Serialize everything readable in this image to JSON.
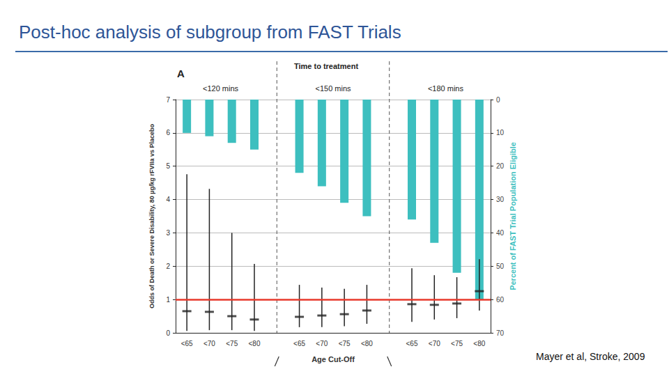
{
  "chart_data": {
    "type": "bar",
    "title": "Post-hoc analysis of subgroup from FAST Trials",
    "panel_label": "A",
    "group_title": "Time to treatment",
    "group_labels": [
      "<120 mins",
      "<150 mins",
      "<180 mins"
    ],
    "x_label": "Age Cut-Off",
    "y_label": "Odds of Death or Severe Disability, 80 µg/kg rFVIIa vs Placebo",
    "y2_label": "Percent of FAST Trial Population Eligible",
    "source": "Mayer et al, Stroke, 2009",
    "categories": [
      "<65",
      "<70",
      "<75",
      "<80",
      null,
      "<65",
      "<70",
      "<75",
      "<80",
      null,
      "<65",
      "<70",
      "<75",
      "<80"
    ],
    "series": [
      {
        "type": "bar",
        "axis": "y2",
        "color": "#3dbfbf",
        "values": [
          10,
          11,
          13,
          15,
          null,
          22,
          26,
          31,
          35,
          null,
          36,
          43,
          52,
          60
        ]
      },
      {
        "type": "scatter",
        "marker": "dash",
        "color": "#222222",
        "values": [
          0.65,
          0.63,
          0.5,
          0.4,
          null,
          0.48,
          0.52,
          0.56,
          0.67,
          null,
          0.86,
          0.84,
          0.88,
          1.25
        ],
        "ci_lower": [
          0.06,
          0.08,
          0.08,
          0.06,
          null,
          0.17,
          0.17,
          0.2,
          0.27,
          null,
          0.33,
          0.4,
          0.44,
          0.67
        ],
        "ci_upper": [
          4.76,
          4.32,
          3.0,
          2.07,
          null,
          1.44,
          1.36,
          1.32,
          1.44,
          null,
          1.94,
          1.73,
          1.67,
          2.21
        ]
      }
    ],
    "reference_line": {
      "value": 1,
      "color": "#e8392b"
    },
    "ylim": [
      0,
      7
    ],
    "yticks": [
      0,
      1,
      2,
      3,
      4,
      5,
      6,
      7
    ],
    "y2lim": [
      70,
      0
    ],
    "y2ticks": [
      0,
      10,
      20,
      30,
      40,
      50,
      60,
      70
    ],
    "grid": true
  }
}
